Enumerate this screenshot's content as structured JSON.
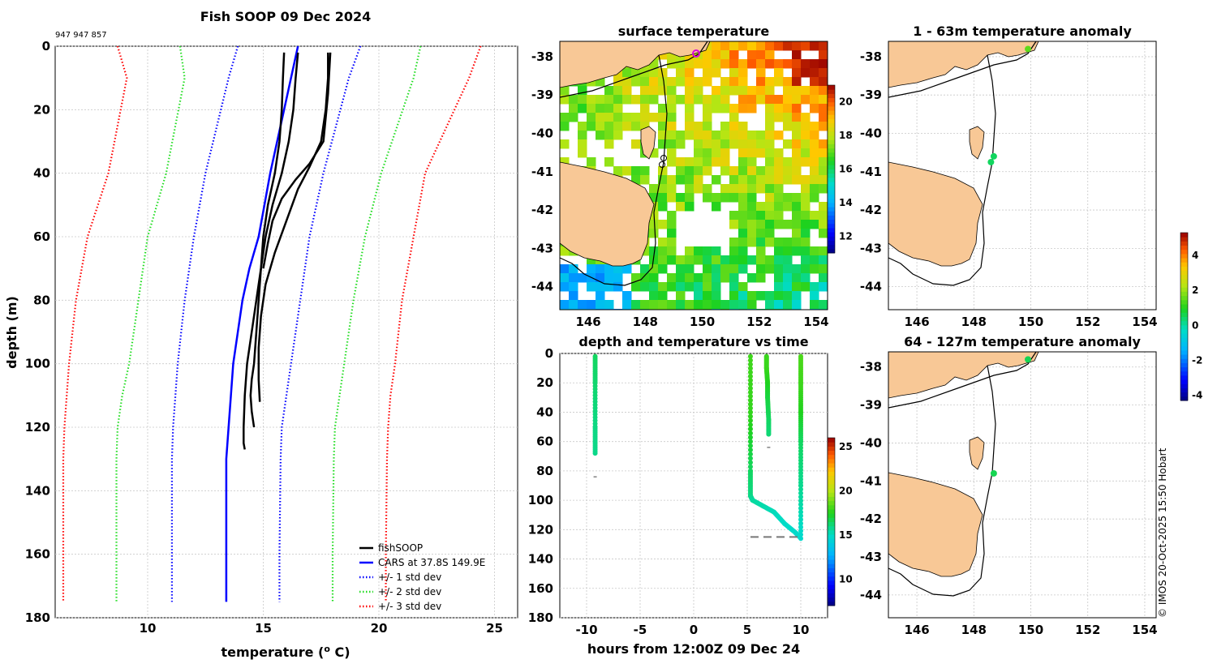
{
  "colors": {
    "land": "#f8c896",
    "black": "#000000",
    "cars": "#0000ff",
    "std1": "#0000ff",
    "std2": "#22dd22",
    "std3": "#ff0000",
    "marker_green": "#33dd22",
    "marker_yellow": "#ddee22",
    "marker_magenta": "#dd00dd",
    "grid": "#bfbfbf"
  },
  "page": {
    "title": "Fish SOOP 09 Dec 2024",
    "id_label": "947 947 857",
    "credit": "© IMOS 20-Oct-2025 15:50 Hobart"
  },
  "chart_data": [
    {
      "id": "profile",
      "type": "line",
      "title": "Fish SOOP 09 Dec 2024",
      "xlabel": "temperature (",
      "xlabel_sup": "o",
      "xlabel_end": " C)",
      "ylabel": "depth (m)",
      "xlim": [
        6,
        26
      ],
      "ylim": [
        0,
        180
      ],
      "xticks": [
        10,
        15,
        20,
        25
      ],
      "yticks": [
        0,
        20,
        40,
        60,
        80,
        100,
        120,
        140,
        160,
        180
      ],
      "legend": [
        {
          "label": "fishSOOP",
          "style": "solid",
          "color": "#000000"
        },
        {
          "label": "CARS at 37.8S 149.9E",
          "style": "solid",
          "color": "#0000ff"
        },
        {
          "label": "+/- 1 std dev",
          "style": "dotted",
          "color": "#0000ff"
        },
        {
          "label": "+/- 2 std dev",
          "style": "dotted",
          "color": "#22dd22"
        },
        {
          "label": "+/- 3 std dev",
          "style": "dotted",
          "color": "#ff0000"
        }
      ],
      "cars": {
        "x": [
          16.5,
          16.2,
          15.9,
          15.3,
          14.8,
          14.4,
          14.1,
          13.9,
          13.7,
          13.5,
          13.4,
          13.4,
          13.4,
          13.4
        ],
        "y": [
          0,
          10,
          20,
          40,
          60,
          70,
          80,
          90,
          100,
          120,
          130,
          140,
          160,
          175
        ]
      },
      "std_lines": [
        {
          "name": "minus-1",
          "color": "#0000ff",
          "x": [
            13.9,
            13.5,
            12.5,
            12.0,
            11.6,
            11.3,
            11.2,
            11.1,
            11.05,
            11.05,
            11.05
          ],
          "y": [
            0,
            10,
            40,
            60,
            80,
            100,
            110,
            120,
            130,
            160,
            175
          ]
        },
        {
          "name": "plus-1",
          "color": "#0000ff",
          "x": [
            19.2,
            18.7,
            17.6,
            17.0,
            16.6,
            16.2,
            16.0,
            15.8,
            15.75,
            15.7,
            15.7
          ],
          "y": [
            0,
            10,
            40,
            60,
            80,
            100,
            110,
            120,
            130,
            160,
            175
          ]
        },
        {
          "name": "minus-2",
          "color": "#22dd22",
          "x": [
            11.4,
            11.6,
            10.8,
            10.0,
            9.6,
            9.2,
            8.9,
            8.7,
            8.65,
            8.65,
            8.65
          ],
          "y": [
            0,
            10,
            40,
            60,
            80,
            100,
            110,
            120,
            130,
            160,
            175
          ]
        },
        {
          "name": "plus-2",
          "color": "#22dd22",
          "x": [
            21.8,
            21.5,
            20.1,
            19.4,
            18.9,
            18.5,
            18.3,
            18.1,
            18.05,
            18.0,
            18.0
          ],
          "y": [
            0,
            10,
            40,
            60,
            80,
            100,
            110,
            120,
            130,
            160,
            175
          ]
        },
        {
          "name": "minus-3",
          "color": "#ff0000",
          "x": [
            8.7,
            9.1,
            8.3,
            7.4,
            6.9,
            6.6,
            6.5,
            6.4,
            6.35,
            6.35,
            6.35
          ],
          "y": [
            0,
            10,
            40,
            60,
            80,
            100,
            110,
            120,
            130,
            160,
            175
          ]
        },
        {
          "name": "plus-3",
          "color": "#ff0000",
          "x": [
            24.4,
            23.9,
            22.0,
            21.5,
            21.0,
            20.7,
            20.5,
            20.4,
            20.35,
            20.3,
            20.3
          ],
          "y": [
            0,
            10,
            40,
            60,
            80,
            100,
            110,
            120,
            130,
            160,
            175
          ]
        }
      ],
      "casts": [
        {
          "x": [
            15.9,
            15.85,
            15.8,
            15.7,
            15.5,
            15.2,
            15.0,
            14.9,
            14.8,
            14.7,
            14.6,
            14.5,
            14.45,
            14.5,
            14.6
          ],
          "y": [
            2,
            10,
            20,
            30,
            40,
            50,
            60,
            70,
            80,
            90,
            100,
            105,
            110,
            115,
            120
          ]
        },
        {
          "x": [
            16.5,
            16.4,
            16.3,
            16.1,
            15.8,
            15.4,
            15.1,
            14.9,
            14.7,
            14.5,
            14.3,
            14.2,
            14.15,
            14.15,
            14.2
          ],
          "y": [
            2,
            10,
            20,
            30,
            40,
            50,
            60,
            70,
            80,
            90,
            100,
            110,
            120,
            125,
            127
          ]
        },
        {
          "x": [
            17.8,
            17.8,
            17.7,
            17.5,
            17.0,
            16.5,
            16.0,
            15.5,
            15.1,
            14.9,
            14.8,
            14.8,
            14.85
          ],
          "y": [
            2,
            10,
            20,
            30,
            38,
            45,
            55,
            65,
            75,
            85,
            95,
            105,
            112
          ]
        },
        {
          "x": [
            17.9,
            17.8,
            17.6,
            17.0,
            16.4,
            15.8,
            15.4,
            15.2,
            15.0
          ],
          "y": [
            2,
            15,
            30,
            37,
            42,
            48,
            55,
            62,
            70
          ]
        }
      ]
    },
    {
      "id": "sst-map",
      "type": "heatmap",
      "title": "surface temperature",
      "xticks": [
        146,
        148,
        150,
        152,
        154
      ],
      "yticks": [
        -38,
        -39,
        -40,
        -41,
        -42,
        -43,
        -44
      ],
      "xlim": [
        145,
        154.4
      ],
      "ylim": [
        -44.6,
        -37.6
      ],
      "colorbar_ticks": [
        12,
        14,
        16,
        18,
        20
      ],
      "colorbar_range": [
        11,
        21
      ]
    },
    {
      "id": "depth-time",
      "type": "scatter",
      "title": "depth and temperature vs time",
      "xlabel": "hours from 12:00Z 09 Dec 24",
      "xticks": [
        -10,
        -5,
        0,
        5,
        10
      ],
      "yticks": [
        0,
        20,
        40,
        60,
        80,
        100,
        120,
        140,
        160,
        180
      ],
      "xlim": [
        -12.5,
        12.5
      ],
      "ylim": [
        0,
        180
      ],
      "colorbar_ticks": [
        10,
        15,
        20,
        25
      ],
      "colorbar_range": [
        7,
        26
      ],
      "casts": [
        {
          "name": "cast-1",
          "x": [
            -9.2,
            -9.2,
            -9.2,
            -9.2
          ],
          "y": [
            2,
            20,
            50,
            68
          ],
          "temp": [
            16.5,
            16.3,
            16.0,
            15.9
          ]
        },
        {
          "name": "cast-2a",
          "x": [
            5.3,
            5.3,
            5.3,
            5.3,
            5.5,
            6.5,
            7.5,
            8.5,
            9.5,
            9.9
          ],
          "y": [
            2,
            40,
            80,
            97,
            100,
            104,
            108,
            116,
            122,
            125
          ],
          "temp": [
            18.0,
            17.8,
            16.5,
            16.0,
            15.6,
            15.4,
            15.2,
            15.0,
            14.9,
            14.8
          ]
        },
        {
          "name": "cast-2b",
          "x": [
            6.8,
            6.8,
            6.9,
            6.9,
            7.0,
            7.0
          ],
          "y": [
            2,
            10,
            20,
            30,
            45,
            55
          ],
          "temp": [
            17.9,
            17.9,
            17.5,
            17.0,
            16.5,
            16.2
          ]
        },
        {
          "name": "cast-2c",
          "x": [
            10.0,
            10.0,
            10.0,
            10.0,
            10.0,
            10.0
          ],
          "y": [
            2,
            20,
            40,
            60,
            90,
            126
          ],
          "temp": [
            18.2,
            18.0,
            17.5,
            16.5,
            15.8,
            14.8
          ]
        }
      ],
      "stray_points": [
        {
          "x": -9.2,
          "y": 84
        },
        {
          "x": 7.0,
          "y": 64
        }
      ],
      "bottom_line": {
        "x": [
          5.3,
          10.0
        ],
        "y": [
          125,
          125
        ]
      }
    },
    {
      "id": "anom-1-63",
      "type": "scatter",
      "title": "1 - 63m temperature anomaly",
      "xticks": [
        146,
        148,
        150,
        152,
        154
      ],
      "yticks": [
        -38,
        -39,
        -40,
        -41,
        -42,
        -43,
        -44
      ],
      "xlim": [
        145,
        154.4
      ],
      "ylim": [
        -44.6,
        -37.6
      ],
      "points": [
        {
          "lon": 149.9,
          "lat": -37.8,
          "anom": 1.5
        },
        {
          "lon": 148.7,
          "lat": -40.6,
          "anom": 0.5
        },
        {
          "lon": 148.6,
          "lat": -40.75,
          "anom": 0.5
        }
      ]
    },
    {
      "id": "anom-64-127",
      "type": "scatter",
      "title": "64 - 127m temperature anomaly",
      "xticks": [
        146,
        148,
        150,
        152,
        154
      ],
      "yticks": [
        -38,
        -39,
        -40,
        -41,
        -42,
        -43,
        -44
      ],
      "xlim": [
        145,
        154.4
      ],
      "ylim": [
        -44.6,
        -37.6
      ],
      "points": [
        {
          "lon": 149.9,
          "lat": -37.8,
          "anom": 0.6
        },
        {
          "lon": 148.7,
          "lat": -40.8,
          "anom": 0.6
        }
      ]
    },
    {
      "id": "anom-colorbar",
      "type": "heatmap",
      "colorbar_ticks": [
        4,
        2,
        0,
        -2,
        -4
      ],
      "colorbar_range": [
        -4.3,
        5.3
      ]
    }
  ]
}
